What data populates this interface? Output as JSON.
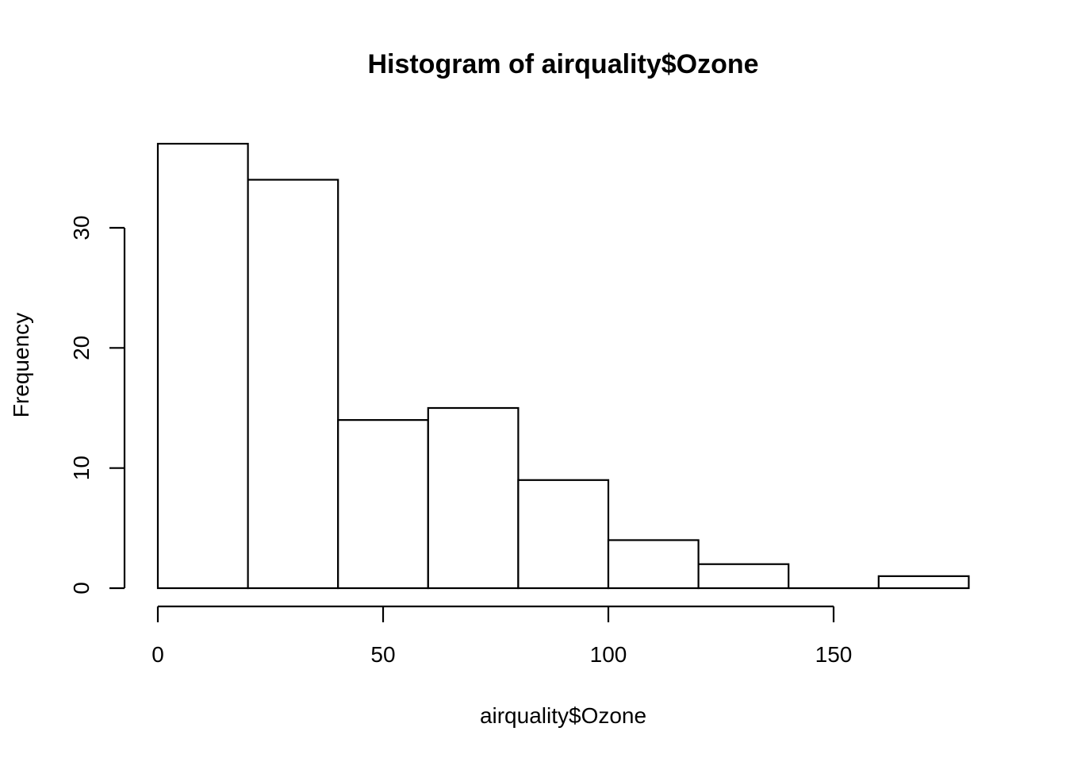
{
  "chart_data": {
    "type": "bar",
    "title": "Histogram of airquality$Ozone",
    "xlabel": "airquality$Ozone",
    "ylabel": "Frequency",
    "bins": [
      {
        "start": 0,
        "end": 20,
        "count": 37
      },
      {
        "start": 20,
        "end": 40,
        "count": 34
      },
      {
        "start": 40,
        "end": 60,
        "count": 14
      },
      {
        "start": 60,
        "end": 80,
        "count": 15
      },
      {
        "start": 80,
        "end": 100,
        "count": 9
      },
      {
        "start": 100,
        "end": 120,
        "count": 4
      },
      {
        "start": 120,
        "end": 140,
        "count": 2
      },
      {
        "start": 140,
        "end": 160,
        "count": 0
      },
      {
        "start": 160,
        "end": 180,
        "count": 1
      }
    ],
    "xlim": [
      0,
      180
    ],
    "ylim": [
      0,
      37
    ],
    "x_ticks": [
      "0",
      "50",
      "100",
      "150"
    ],
    "y_ticks": [
      "0",
      "10",
      "20",
      "30"
    ],
    "grid": false,
    "legend": "none"
  }
}
